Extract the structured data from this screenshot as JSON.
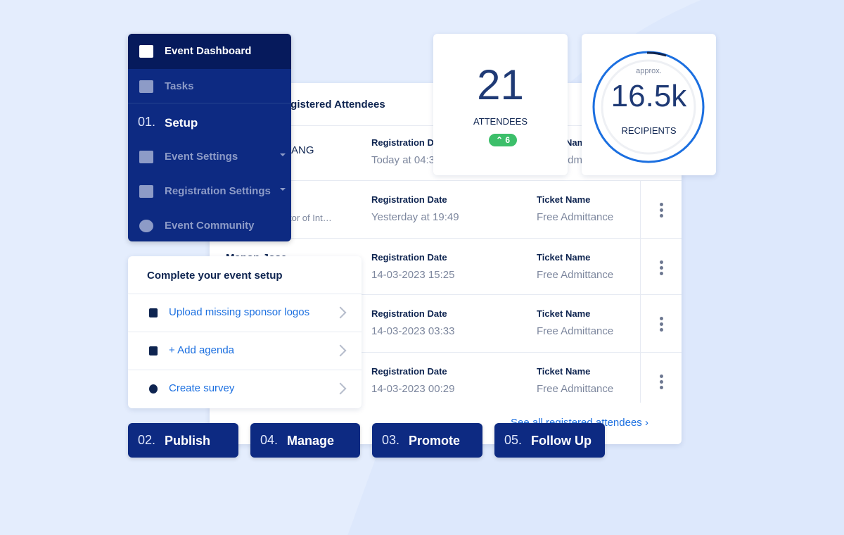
{
  "sidebar": {
    "items": [
      {
        "label": "Event Dashboard"
      },
      {
        "label": "Tasks"
      },
      {
        "number": "01.",
        "label": "Setup"
      },
      {
        "label": "Event Settings"
      },
      {
        "label": "Registration Settings"
      },
      {
        "label": "Event Community"
      }
    ]
  },
  "attendees": {
    "title": "Registered Attendees",
    "rows": [
      {
        "name": "ANG",
        "date_label": "Registration Date",
        "date": "Today at 04:3",
        "ticket_label": "Ticket Name",
        "ticket": "Free Admittance"
      },
      {
        "subtitle": "tor of Int…",
        "date_label": "Registration Date",
        "date": "Yesterday at 19:49",
        "ticket_label": "Ticket Name",
        "ticket": "Free Admittance"
      },
      {
        "name": "Manon Jose",
        "date_label": "Registration Date",
        "date": "14-03-2023 15:25",
        "ticket_label": "Ticket Name",
        "ticket": "Free Admittance"
      },
      {
        "date_label": "Registration Date",
        "date": "14-03-2023 03:33",
        "ticket_label": "Ticket Name",
        "ticket": "Free Admittance"
      },
      {
        "date_label": "Registration Date",
        "date": "14-03-2023 00:29",
        "ticket_label": "Ticket Name",
        "ticket": "Free Admittance"
      }
    ],
    "footer_link": "See all registered attendees"
  },
  "stats": {
    "attendees": {
      "value": "21",
      "label": "ATTENDEES",
      "badge": "6"
    },
    "recipients": {
      "note": "approx.",
      "value": "16.5k",
      "label": "RECIPIENTS"
    }
  },
  "setup_card": {
    "title": "Complete your event setup",
    "items": [
      "Upload missing sponsor logos",
      "+ Add agenda",
      "Create survey"
    ]
  },
  "steps": [
    {
      "number": "02.",
      "label": "Publish"
    },
    {
      "number": "04.",
      "label": "Manage"
    },
    {
      "number": "03.",
      "label": "Promote"
    },
    {
      "number": "05.",
      "label": "Follow Up"
    }
  ]
}
